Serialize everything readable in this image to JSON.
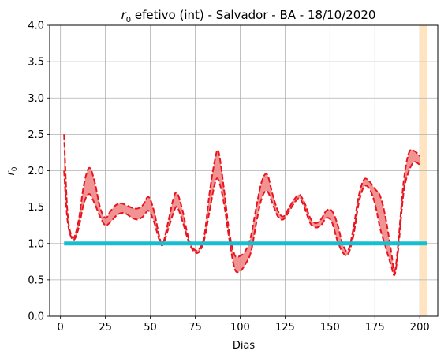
{
  "chart_data": {
    "type": "line",
    "title_main": "efetivo (int) - Salvador - BA - 18/10/2020",
    "title_symbol": "r",
    "title_subscript": "0",
    "xlabel": "Dias",
    "ylabel_symbol": "r",
    "ylabel_subscript": "0",
    "xlim": [
      -6,
      210
    ],
    "ylim": [
      0,
      4.0
    ],
    "xticks": [
      0,
      25,
      50,
      75,
      100,
      125,
      150,
      175,
      200
    ],
    "yticks": [
      "0.0",
      "0.5",
      "1.0",
      "1.5",
      "2.0",
      "2.5",
      "3.0",
      "3.5",
      "4.0"
    ],
    "grid": true,
    "colors": {
      "band_fill": "#f08080",
      "band_line": "#e8141e",
      "threshold": "#17becf",
      "highlight": "#ffe4bf",
      "grid": "#b0b0b0"
    },
    "highlight_x": [
      200,
      204
    ],
    "threshold": {
      "x": [
        2,
        204
      ],
      "y": 1.0
    },
    "x": [
      2,
      4,
      7,
      10,
      13,
      16,
      19,
      22,
      25,
      28,
      31,
      34,
      37,
      40,
      43,
      46,
      49,
      52,
      55,
      57,
      60,
      63,
      65,
      68,
      71,
      74,
      77,
      80,
      83,
      86,
      88,
      91,
      94,
      97,
      100,
      103,
      106,
      109,
      112,
      115,
      118,
      121,
      124,
      127,
      130,
      133,
      136,
      139,
      142,
      145,
      148,
      151,
      154,
      157,
      160,
      163,
      166,
      169,
      172,
      175,
      178,
      181,
      184,
      186,
      188,
      191,
      194,
      197,
      200
    ],
    "upper": [
      2.5,
      1.4,
      1.08,
      1.3,
      1.8,
      2.04,
      1.85,
      1.5,
      1.35,
      1.45,
      1.53,
      1.55,
      1.52,
      1.49,
      1.48,
      1.53,
      1.64,
      1.45,
      1.1,
      1.0,
      1.3,
      1.63,
      1.69,
      1.45,
      1.1,
      0.93,
      0.92,
      1.1,
      1.7,
      2.15,
      2.26,
      1.75,
      1.15,
      0.84,
      0.83,
      0.9,
      1.1,
      1.5,
      1.85,
      1.95,
      1.68,
      1.45,
      1.37,
      1.48,
      1.6,
      1.67,
      1.55,
      1.35,
      1.28,
      1.33,
      1.45,
      1.45,
      1.28,
      1.0,
      0.9,
      1.2,
      1.65,
      1.88,
      1.85,
      1.75,
      1.65,
      1.35,
      0.9,
      0.62,
      1.0,
      1.85,
      2.25,
      2.27,
      2.2
    ],
    "lower": [
      2.0,
      1.3,
      1.05,
      1.2,
      1.55,
      1.68,
      1.55,
      1.37,
      1.25,
      1.3,
      1.38,
      1.42,
      1.4,
      1.35,
      1.33,
      1.37,
      1.45,
      1.3,
      1.05,
      0.98,
      1.2,
      1.43,
      1.5,
      1.3,
      1.05,
      0.9,
      0.88,
      1.05,
      1.45,
      1.83,
      1.87,
      1.55,
      1.05,
      0.65,
      0.62,
      0.72,
      0.88,
      1.28,
      1.62,
      1.72,
      1.55,
      1.37,
      1.33,
      1.43,
      1.55,
      1.62,
      1.48,
      1.28,
      1.22,
      1.25,
      1.35,
      1.3,
      1.05,
      0.88,
      0.85,
      1.1,
      1.55,
      1.78,
      1.75,
      1.55,
      1.2,
      0.95,
      0.7,
      0.57,
      0.92,
      1.7,
      2.0,
      2.12,
      2.08
    ]
  }
}
